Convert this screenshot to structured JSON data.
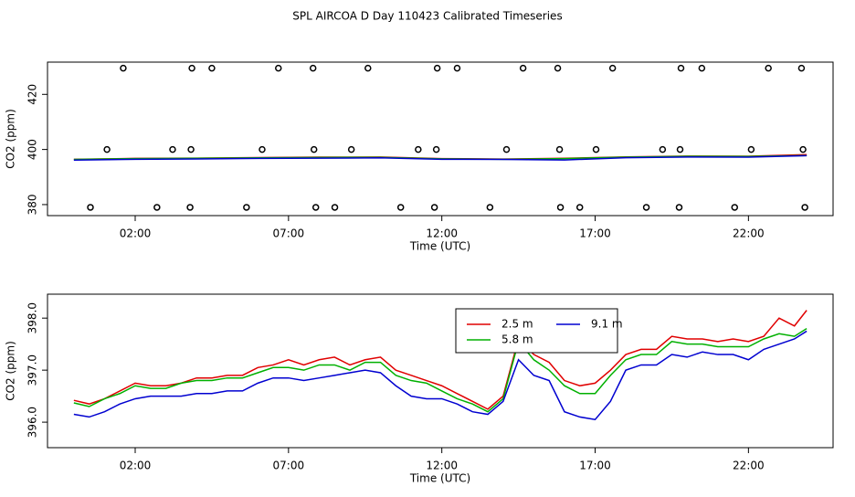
{
  "chart_data": [
    {
      "type": "line",
      "title": "SPL AIRCOA D  Day 110423  Calibrated Timeseries",
      "x_label": "Time (UTC)",
      "y_label": "CO2 (ppm)",
      "xlim": [
        -0.86,
        24.76
      ],
      "ylim": [
        376,
        431.7
      ],
      "xticks": [
        {
          "value": 2,
          "label": "02:00"
        },
        {
          "value": 7,
          "label": "07:00"
        },
        {
          "value": 12,
          "label": "12:00"
        },
        {
          "value": 17,
          "label": "17:00"
        },
        {
          "value": 22,
          "label": "22:00"
        }
      ],
      "yticks": [
        380,
        400,
        420
      ],
      "x": [
        0,
        2,
        4,
        6,
        8,
        10,
        12,
        14,
        16,
        18,
        20,
        22,
        23.9
      ],
      "series": [
        {
          "color": "#e00000",
          "values": [
            396.42,
            396.75,
            396.85,
            397.05,
            397.2,
            397.25,
            396.7,
            396.5,
            396.8,
            397.3,
            397.6,
            397.55,
            398.15
          ]
        },
        {
          "color": "#00b000",
          "values": [
            396.37,
            396.7,
            396.8,
            396.95,
            397.1,
            397.15,
            396.6,
            396.45,
            396.7,
            397.2,
            397.5,
            397.45,
            397.8
          ]
        },
        {
          "color": "#0000d0",
          "values": [
            396.15,
            396.45,
            396.55,
            396.75,
            396.85,
            396.95,
            396.45,
            396.4,
            396.2,
            397.0,
            397.25,
            397.2,
            397.75
          ]
        }
      ],
      "flags": {
        "x": [
          1.61,
          3.85,
          4.5,
          6.67,
          7.8,
          9.59,
          11.85,
          12.5,
          14.65,
          15.78,
          17.57,
          19.8,
          20.48,
          22.65,
          23.73,
          1.08,
          3.22,
          3.82,
          6.14,
          7.83,
          9.05,
          11.23,
          11.82,
          14.11,
          15.84,
          17.03,
          19.2,
          19.77,
          22.09,
          23.78,
          0.54,
          2.71,
          3.79,
          5.63,
          7.89,
          8.51,
          10.66,
          11.76,
          13.57,
          15.87,
          16.5,
          18.67,
          19.74,
          21.55,
          23.84
        ],
        "values": [
          429.5,
          429.5,
          429.5,
          429.5,
          429.5,
          429.5,
          429.5,
          429.5,
          429.5,
          429.5,
          429.5,
          429.5,
          429.5,
          429.5,
          429.5,
          400,
          400,
          400,
          400,
          400,
          400,
          400,
          400,
          400,
          400,
          400,
          400,
          400,
          400,
          400,
          379,
          379,
          379,
          379,
          379,
          379,
          379,
          379,
          379,
          379,
          379,
          379,
          379,
          379,
          379
        ],
        "color": "#000000"
      }
    },
    {
      "type": "line",
      "x_label": "Time (UTC)",
      "y_label": "CO2 (ppm)",
      "xlim": [
        -0.86,
        24.76
      ],
      "ylim": [
        395.51,
        398.46
      ],
      "xticks": [
        {
          "value": 2,
          "label": "02:00"
        },
        {
          "value": 7,
          "label": "07:00"
        },
        {
          "value": 12,
          "label": "12:00"
        },
        {
          "value": 17,
          "label": "17:00"
        },
        {
          "value": 22,
          "label": "22:00"
        }
      ],
      "yticks": [
        {
          "value": 396,
          "label": "396.0"
        },
        {
          "value": 397,
          "label": "397.0"
        },
        {
          "value": 398,
          "label": "398.0"
        }
      ],
      "x": [
        0,
        0.5,
        1,
        1.5,
        2,
        2.5,
        3,
        3.5,
        4,
        4.5,
        5,
        5.5,
        6,
        6.5,
        7,
        7.5,
        8,
        8.5,
        9,
        9.5,
        10,
        10.5,
        11,
        11.5,
        12,
        12.5,
        13,
        13.5,
        14,
        14.5,
        15,
        15.5,
        16,
        16.5,
        17,
        17.5,
        18,
        18.5,
        19,
        19.5,
        20,
        20.5,
        21,
        21.5,
        22,
        22.5,
        23,
        23.5,
        23.9
      ],
      "series": [
        {
          "name": "2.5 m",
          "color": "#e00000",
          "values": [
            396.42,
            396.35,
            396.45,
            396.6,
            396.75,
            396.7,
            396.7,
            396.75,
            396.85,
            396.85,
            396.9,
            396.9,
            397.05,
            397.1,
            397.2,
            397.1,
            397.2,
            397.25,
            397.1,
            397.2,
            397.25,
            397.0,
            396.9,
            396.8,
            396.7,
            396.55,
            396.4,
            396.25,
            396.5,
            397.6,
            397.3,
            397.15,
            396.8,
            396.7,
            396.75,
            397.0,
            397.3,
            397.4,
            397.4,
            397.65,
            397.6,
            397.6,
            397.55,
            397.6,
            397.55,
            397.65,
            398.0,
            397.85,
            398.15
          ]
        },
        {
          "name": "5.8 m",
          "color": "#00b000",
          "values": [
            396.37,
            396.3,
            396.45,
            396.55,
            396.7,
            396.65,
            396.65,
            396.75,
            396.8,
            396.8,
            396.85,
            396.85,
            396.95,
            397.05,
            397.05,
            397.0,
            397.1,
            397.1,
            397.0,
            397.15,
            397.15,
            396.9,
            396.8,
            396.75,
            396.6,
            396.45,
            396.35,
            396.2,
            396.45,
            397.55,
            397.2,
            397.0,
            396.7,
            396.55,
            396.55,
            396.9,
            397.2,
            397.3,
            397.3,
            397.55,
            397.5,
            397.5,
            397.45,
            397.45,
            397.45,
            397.6,
            397.7,
            397.65,
            397.8
          ]
        },
        {
          "name": "9.1 m",
          "color": "#0000d0",
          "values": [
            396.15,
            396.1,
            396.2,
            396.35,
            396.45,
            396.5,
            396.5,
            396.5,
            396.55,
            396.55,
            396.6,
            396.6,
            396.75,
            396.85,
            396.85,
            396.8,
            396.85,
            396.9,
            396.95,
            397.0,
            396.95,
            396.7,
            396.5,
            396.45,
            396.45,
            396.35,
            396.2,
            396.15,
            396.4,
            397.2,
            396.9,
            396.8,
            396.2,
            396.1,
            396.05,
            396.4,
            397.0,
            397.1,
            397.1,
            397.3,
            397.25,
            397.35,
            397.3,
            397.3,
            397.2,
            397.4,
            397.5,
            397.6,
            397.75
          ]
        }
      ]
    }
  ]
}
